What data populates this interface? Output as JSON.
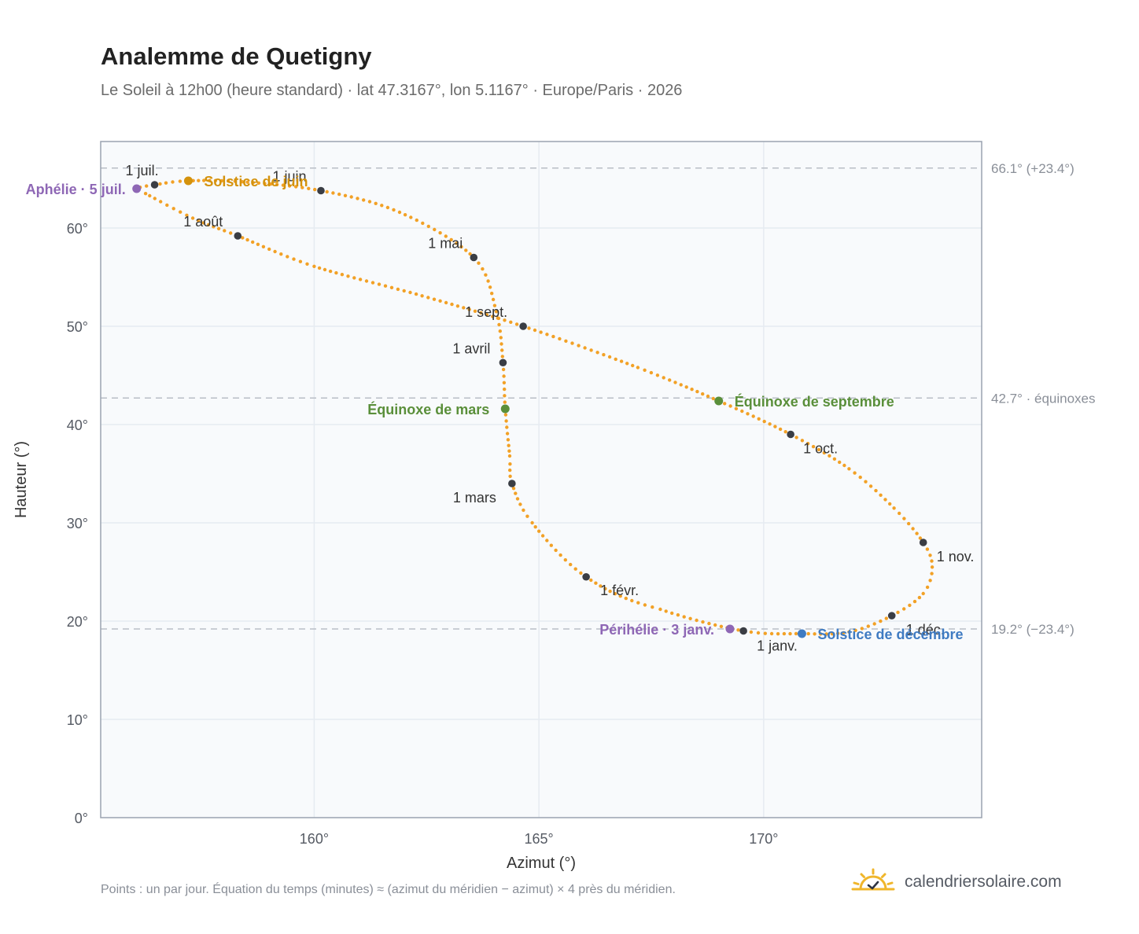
{
  "header": {
    "title": "Analemme de Quetigny",
    "subtitle": "Le Soleil à 12h00 (heure standard) · lat 47.3167°, lon 5.1167° · Europe/Paris · 2026"
  },
  "footer": {
    "note": "Points : un par jour. Équation du temps (minutes) ≈ (azimut du méridien − azimut) × 4 près du méridien.",
    "brand": "calendriersolaire.com"
  },
  "colors": {
    "curve": "#f2a126",
    "month_dot": "#3a3d44",
    "solstice_june": "#d4920c",
    "equinox": "#5a8f3a",
    "solstice_december": "#3f7bc2",
    "apsis": "#8e67b5",
    "grid": "#e6ebf1",
    "plot_bg": "#f8fafc",
    "frame": "#9aa3b0",
    "ref_line": "#b9bec6"
  },
  "chart_data": {
    "type": "scatter",
    "xlabel": "Azimut (°)",
    "ylabel": "Hauteur (°)",
    "xlim": [
      155.25,
      174.85
    ],
    "ylim": [
      0,
      68.8
    ],
    "x_ticks": [
      160,
      165,
      170
    ],
    "x_tick_labels": [
      "160°",
      "165°",
      "170°"
    ],
    "y_ticks": [
      0,
      10,
      20,
      30,
      40,
      50,
      60
    ],
    "y_tick_labels": [
      "0°",
      "10°",
      "20°",
      "30°",
      "40°",
      "50°",
      "60°"
    ],
    "grid": true,
    "reference_lines": [
      {
        "y": 66.1,
        "label": "66.1° (+23.4°)"
      },
      {
        "y": 42.7,
        "label": "42.7° · équinoxes"
      },
      {
        "y": 19.2,
        "label": "19.2° (−23.4°)"
      }
    ],
    "analemma_path": [
      [
        169.55,
        19.0
      ],
      [
        170.85,
        18.72
      ],
      [
        171.9,
        18.9
      ],
      [
        172.85,
        20.55
      ],
      [
        173.55,
        22.8
      ],
      [
        173.75,
        25.5
      ],
      [
        173.55,
        28.0
      ],
      [
        172.9,
        31.5
      ],
      [
        171.9,
        35.5
      ],
      [
        170.6,
        39.0
      ],
      [
        169.0,
        42.4
      ],
      [
        167.2,
        45.8
      ],
      [
        164.65,
        50.0
      ],
      [
        162.4,
        53.1
      ],
      [
        160.0,
        56.1
      ],
      [
        158.3,
        59.2
      ],
      [
        157.3,
        61.0
      ],
      [
        156.25,
        63.5
      ],
      [
        156.05,
        64.0
      ],
      [
        156.45,
        64.4
      ],
      [
        157.2,
        64.8
      ],
      [
        158.4,
        64.7
      ],
      [
        160.15,
        63.8
      ],
      [
        161.9,
        61.6
      ],
      [
        163.55,
        57.0
      ],
      [
        164.05,
        51.5
      ],
      [
        164.2,
        46.3
      ],
      [
        164.25,
        41.6
      ],
      [
        164.35,
        36.8
      ],
      [
        164.4,
        34.0
      ],
      [
        164.85,
        30.0
      ],
      [
        166.05,
        24.5
      ],
      [
        167.7,
        21.2
      ],
      [
        169.55,
        19.0
      ]
    ],
    "months": [
      {
        "label": "1 janv.",
        "x": 169.55,
        "y": 19.0
      },
      {
        "label": "1 févr.",
        "x": 166.05,
        "y": 24.5
      },
      {
        "label": "1 mars",
        "x": 164.4,
        "y": 34.0
      },
      {
        "label": "1 avril",
        "x": 164.2,
        "y": 46.3
      },
      {
        "label": "1 mai",
        "x": 163.55,
        "y": 57.0
      },
      {
        "label": "1 juin",
        "x": 160.15,
        "y": 63.8
      },
      {
        "label": "1 juil.",
        "x": 156.45,
        "y": 64.4
      },
      {
        "label": "1 août",
        "x": 158.3,
        "y": 59.2
      },
      {
        "label": "1 sept.",
        "x": 164.65,
        "y": 50.0
      },
      {
        "label": "1 oct.",
        "x": 170.6,
        "y": 39.0
      },
      {
        "label": "1 nov.",
        "x": 173.55,
        "y": 28.0
      },
      {
        "label": "1 déc.",
        "x": 172.85,
        "y": 20.55
      }
    ],
    "events": [
      {
        "label": "Solstice de juin",
        "x": 157.2,
        "y": 64.8
      },
      {
        "label": "Équinoxe de mars",
        "x": 164.25,
        "y": 41.6
      },
      {
        "label": "Équinoxe de septembre",
        "x": 169.0,
        "y": 42.4
      },
      {
        "label": "Solstice de décembre",
        "x": 170.85,
        "y": 18.72
      },
      {
        "label": "Aphélie · 5 juil.",
        "x": 156.05,
        "y": 64.0
      },
      {
        "label": "Périhélie · 3 janv.",
        "x": 169.25,
        "y": 19.2
      }
    ]
  }
}
